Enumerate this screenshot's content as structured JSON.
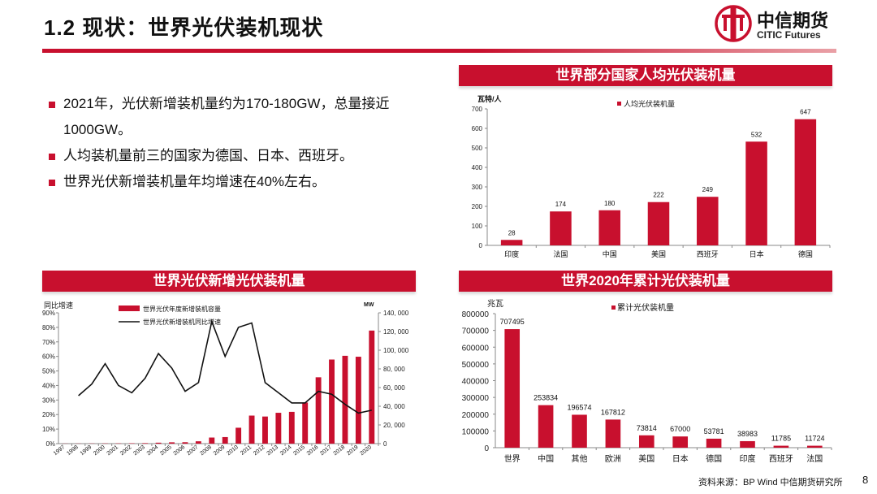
{
  "page": {
    "title": "1.2 现状：世界光伏装机现状",
    "logo_cn": "中信期货",
    "logo_en": "CITIC Futures",
    "source": "资料来源：BP Wind 中信期货研究所",
    "page_number": "8"
  },
  "bullets": [
    "2021年，光伏新增装机量约为170-180GW，总量接近1000GW。",
    "人均装机量前三的国家为德国、日本、西班牙。",
    "世界光伏新增装机量年均增速在40%左右。"
  ],
  "colors": {
    "accent": "#c8102e",
    "line": "#111111"
  },
  "chart_data": [
    {
      "id": "per_capita",
      "type": "bar",
      "title": "世界部分国家人均光伏装机量",
      "ylabel": "瓦特/人",
      "legend": "人均光伏装机量",
      "categories": [
        "印度",
        "法国",
        "中国",
        "美国",
        "西班牙",
        "日本",
        "德国"
      ],
      "values": [
        28,
        174,
        180,
        222,
        249,
        532,
        647
      ],
      "ylim": [
        0,
        700
      ],
      "yticks": [
        0,
        100,
        200,
        300,
        400,
        500,
        600,
        700
      ]
    },
    {
      "id": "new_installs",
      "type": "bar+line",
      "title": "世界光伏新增光伏装机量",
      "ylabel_left": "同比增速",
      "ylabel_right": "MW",
      "categories": [
        "1997",
        "1998",
        "1999",
        "2000",
        "2001",
        "2002",
        "2003",
        "2004",
        "2005",
        "2006",
        "2007",
        "2008",
        "2009",
        "2010",
        "2011",
        "2012",
        "2013",
        "2014",
        "2015",
        "2016",
        "2017",
        "2018",
        "2019",
        "2020"
      ],
      "series": [
        {
          "name": "世界光伏年度新增装机容量",
          "kind": "bar",
          "axis": "right",
          "values": [
            120,
            150,
            200,
            250,
            300,
            400,
            550,
            1000,
            1400,
            1500,
            2500,
            6500,
            7000,
            17000,
            30000,
            29000,
            33000,
            34000,
            44000,
            71000,
            90000,
            94000,
            93000,
            121000
          ]
        },
        {
          "name": "世界光伏新增装机同比增速",
          "kind": "line",
          "axis": "left",
          "values": [
            null,
            33,
            41,
            55,
            40,
            35,
            45,
            62,
            52,
            36,
            42,
            84,
            60,
            80,
            83,
            42,
            35,
            28,
            28,
            36,
            34,
            27,
            21,
            23
          ]
        }
      ],
      "ylim_left": [
        0,
        90
      ],
      "yticks_left": [
        "0%",
        "10%",
        "20%",
        "30%",
        "40%",
        "50%",
        "60%",
        "70%",
        "80%",
        "90%"
      ],
      "ylim_right": [
        0,
        140000
      ],
      "yticks_right": [
        "0",
        "20, 000",
        "40, 000",
        "60, 000",
        "80, 000",
        "100, 000",
        "120, 000",
        "140, 000"
      ]
    },
    {
      "id": "cumulative",
      "type": "bar",
      "title": "世界2020年累计光伏装机量",
      "ylabel": "兆瓦",
      "legend": "累计光伏装机量",
      "categories": [
        "世界",
        "中国",
        "其他",
        "欧洲",
        "美国",
        "日本",
        "德国",
        "印度",
        "西班牙",
        "法国"
      ],
      "values": [
        707495,
        253834,
        196574,
        167812,
        73814,
        67000,
        53781,
        38983,
        11785,
        11724
      ],
      "ylim": [
        0,
        800000
      ],
      "yticks": [
        0,
        100000,
        200000,
        300000,
        400000,
        500000,
        600000,
        700000,
        800000
      ]
    }
  ]
}
